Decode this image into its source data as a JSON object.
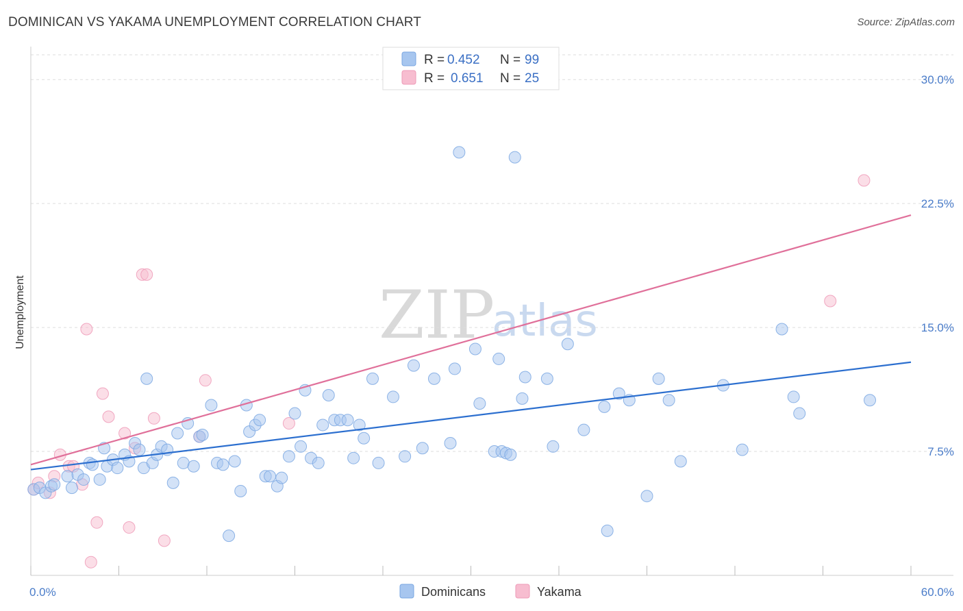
{
  "title": "DOMINICAN VS YAKAMA UNEMPLOYMENT CORRELATION CHART",
  "source": "Source: ZipAtlas.com",
  "watermark": {
    "zip": "ZIP",
    "atlas": "atlas"
  },
  "colors": {
    "blue": "#a7c6ef",
    "blue_stroke": "#7aa7e2",
    "blue_line": "#2c6fcf",
    "pink": "#f7bdd0",
    "pink_stroke": "#ee9ab7",
    "pink_line": "#e0709a",
    "grid": "#dddddd",
    "axis_label": "#4a7cc9"
  },
  "chart_data": {
    "type": "scatter",
    "title": "DOMINICAN VS YAKAMA UNEMPLOYMENT CORRELATION CHART",
    "xlabel": "",
    "ylabel": "Unemployment",
    "xlim": [
      0,
      60
    ],
    "ylim": [
      0,
      31.5
    ],
    "x_tick_labels": [
      "0.0%",
      "60.0%"
    ],
    "y_ticks": [
      7.5,
      15.0,
      22.5,
      30.0
    ],
    "y_tick_labels": [
      "7.5%",
      "15.0%",
      "22.5%",
      "30.0%"
    ],
    "legend": [
      {
        "swatch": "blue",
        "r_label": "R =",
        "r_value": "0.452",
        "n_label": "N =",
        "n_value": "99"
      },
      {
        "swatch": "pink",
        "r_label": "R =",
        "r_value": "0.651",
        "n_label": "N =",
        "n_value": "25"
      }
    ],
    "series": [
      {
        "name": "Dominicans",
        "color": "blue",
        "trend": {
          "x0": 0,
          "y0": 6.4,
          "x1": 60,
          "y1": 12.9
        },
        "points": [
          [
            0.2,
            5.2
          ],
          [
            0.6,
            5.3
          ],
          [
            1.0,
            5.0
          ],
          [
            1.4,
            5.4
          ],
          [
            1.6,
            5.5
          ],
          [
            2.5,
            6.0
          ],
          [
            2.8,
            5.3
          ],
          [
            3.2,
            6.1
          ],
          [
            3.6,
            5.8
          ],
          [
            4.0,
            6.8
          ],
          [
            4.2,
            6.7
          ],
          [
            4.7,
            5.8
          ],
          [
            5.0,
            7.7
          ],
          [
            5.2,
            6.6
          ],
          [
            5.6,
            7.0
          ],
          [
            5.9,
            6.5
          ],
          [
            6.4,
            7.3
          ],
          [
            6.7,
            6.9
          ],
          [
            7.1,
            8.0
          ],
          [
            7.4,
            7.6
          ],
          [
            7.7,
            6.5
          ],
          [
            7.9,
            11.9
          ],
          [
            8.3,
            6.8
          ],
          [
            8.6,
            7.3
          ],
          [
            8.9,
            7.8
          ],
          [
            9.3,
            7.6
          ],
          [
            9.7,
            5.6
          ],
          [
            10.0,
            8.6
          ],
          [
            10.4,
            6.8
          ],
          [
            10.7,
            9.2
          ],
          [
            11.1,
            6.6
          ],
          [
            11.5,
            8.4
          ],
          [
            11.7,
            8.5
          ],
          [
            12.3,
            10.3
          ],
          [
            12.7,
            6.8
          ],
          [
            13.1,
            6.7
          ],
          [
            13.5,
            2.4
          ],
          [
            13.9,
            6.9
          ],
          [
            14.3,
            5.1
          ],
          [
            14.7,
            10.3
          ],
          [
            14.9,
            8.7
          ],
          [
            15.3,
            9.1
          ],
          [
            15.6,
            9.4
          ],
          [
            16.0,
            6.0
          ],
          [
            16.3,
            6.0
          ],
          [
            16.8,
            5.4
          ],
          [
            17.1,
            5.9
          ],
          [
            17.6,
            7.2
          ],
          [
            18.0,
            9.8
          ],
          [
            18.4,
            7.8
          ],
          [
            18.7,
            11.2
          ],
          [
            19.1,
            7.1
          ],
          [
            19.6,
            6.8
          ],
          [
            19.9,
            9.1
          ],
          [
            20.3,
            10.9
          ],
          [
            20.7,
            9.4
          ],
          [
            21.1,
            9.4
          ],
          [
            21.6,
            9.4
          ],
          [
            22.0,
            7.1
          ],
          [
            22.4,
            9.1
          ],
          [
            22.7,
            8.3
          ],
          [
            23.3,
            11.9
          ],
          [
            23.7,
            6.8
          ],
          [
            24.7,
            10.8
          ],
          [
            25.5,
            7.2
          ],
          [
            26.1,
            12.7
          ],
          [
            26.7,
            7.7
          ],
          [
            27.5,
            11.9
          ],
          [
            28.6,
            8.0
          ],
          [
            28.9,
            12.5
          ],
          [
            29.2,
            25.6
          ],
          [
            30.3,
            13.7
          ],
          [
            30.6,
            10.4
          ],
          [
            31.6,
            7.5
          ],
          [
            31.9,
            13.1
          ],
          [
            32.1,
            7.5
          ],
          [
            32.4,
            7.4
          ],
          [
            32.7,
            7.3
          ],
          [
            33.0,
            25.3
          ],
          [
            33.5,
            10.7
          ],
          [
            33.7,
            12.0
          ],
          [
            35.2,
            11.9
          ],
          [
            35.6,
            7.8
          ],
          [
            36.6,
            14.0
          ],
          [
            37.7,
            8.8
          ],
          [
            39.1,
            10.2
          ],
          [
            39.3,
            2.7
          ],
          [
            40.1,
            11.0
          ],
          [
            40.8,
            10.6
          ],
          [
            42.0,
            4.8
          ],
          [
            42.8,
            11.9
          ],
          [
            43.5,
            10.6
          ],
          [
            44.3,
            6.9
          ],
          [
            47.2,
            11.5
          ],
          [
            48.5,
            7.6
          ],
          [
            51.2,
            14.9
          ],
          [
            52.0,
            10.8
          ],
          [
            52.4,
            9.8
          ],
          [
            57.2,
            10.6
          ]
        ]
      },
      {
        "name": "Yakama",
        "color": "pink",
        "trend": {
          "x0": 0,
          "y0": 6.7,
          "x1": 60,
          "y1": 21.8
        },
        "points": [
          [
            0.2,
            5.2
          ],
          [
            0.5,
            5.6
          ],
          [
            1.3,
            5.0
          ],
          [
            1.6,
            6.0
          ],
          [
            2.0,
            7.3
          ],
          [
            2.6,
            6.6
          ],
          [
            2.9,
            6.6
          ],
          [
            3.5,
            5.5
          ],
          [
            3.8,
            14.9
          ],
          [
            4.1,
            0.8
          ],
          [
            4.5,
            3.2
          ],
          [
            4.9,
            11.0
          ],
          [
            5.3,
            9.6
          ],
          [
            6.4,
            8.6
          ],
          [
            6.7,
            2.9
          ],
          [
            7.1,
            7.7
          ],
          [
            7.6,
            18.2
          ],
          [
            7.9,
            18.2
          ],
          [
            8.4,
            9.5
          ],
          [
            9.1,
            2.1
          ],
          [
            11.5,
            8.4
          ],
          [
            11.9,
            11.8
          ],
          [
            17.6,
            9.2
          ],
          [
            54.5,
            16.6
          ],
          [
            56.8,
            23.9
          ]
        ]
      }
    ]
  },
  "bottom_legend": [
    {
      "swatch": "blue",
      "label": "Dominicans"
    },
    {
      "swatch": "pink",
      "label": "Yakama"
    }
  ]
}
